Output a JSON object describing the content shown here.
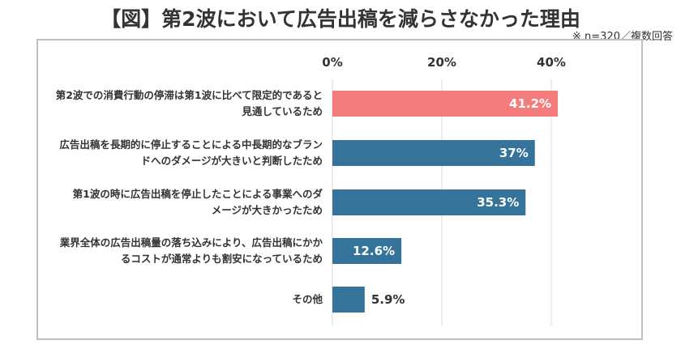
{
  "title": "【図】第2波において広告出稿を減らさなかった理由",
  "note": "※ n=320／複数回答",
  "chart_data": {
    "type": "bar",
    "orientation": "horizontal",
    "categories": [
      [
        "第2波での消費行動の停滞は第1波に比べて限定的であると",
        "見通しているため"
      ],
      [
        "広告出稿を長期的に停止することによる中長期的なブラン",
        "ドへのダメージが大きいと判断したため"
      ],
      [
        "第1波の時に広告出稿を停止したことによる事業へのダ",
        "メージが大きかったため"
      ],
      [
        "業界全体の広告出稿量の落ち込みにより、広告出稿にかか",
        "るコストが通常よりも割安になっているため"
      ],
      [
        "その他"
      ]
    ],
    "values": [
      41.2,
      37,
      35.3,
      12.6,
      5.9
    ],
    "value_labels": [
      "41.2%",
      "37%",
      "35.3%",
      "12.6%",
      "5.9%"
    ],
    "xlim": [
      0,
      45
    ],
    "ticks": [
      0,
      20,
      40
    ],
    "tick_labels": [
      "0%",
      "20%",
      "40%"
    ],
    "grid": true,
    "colors": {
      "highlight": "#f47c7c",
      "bar": "#35739a",
      "grid": "#d9d9d9"
    },
    "highlight_index": 0
  }
}
